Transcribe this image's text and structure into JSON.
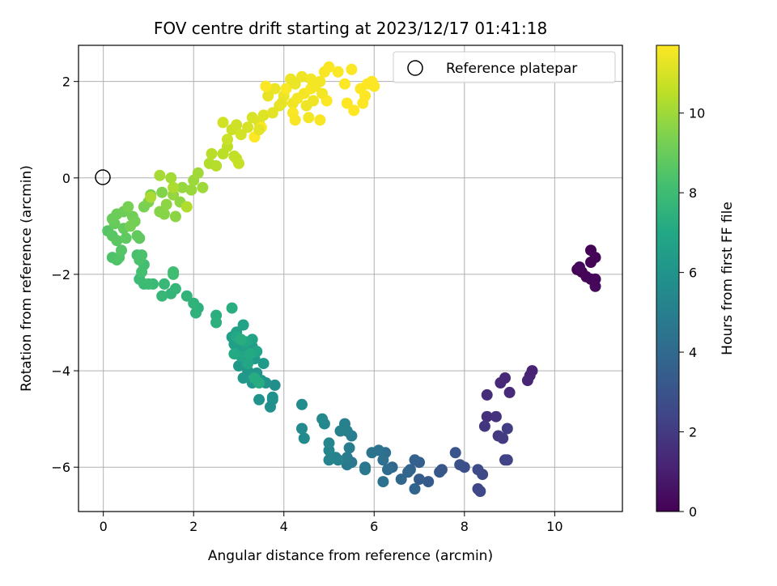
{
  "chart_data": {
    "type": "scatter",
    "title": "FOV centre drift starting at 2023/12/17 01:41:18",
    "xlabel": "Angular distance from reference (arcmin)",
    "ylabel": "Rotation from reference (arcmin)",
    "xlim": [
      -0.55,
      11.5
    ],
    "ylim": [
      -6.92,
      2.75
    ],
    "xticks": [
      0,
      2,
      4,
      6,
      8,
      10
    ],
    "yticks": [
      -6,
      -4,
      -2,
      0,
      2
    ],
    "grid": true,
    "legend": {
      "position": "top-right",
      "entries": [
        "Reference platepar"
      ]
    },
    "reference_point": {
      "x": 0,
      "y": 0
    },
    "colorbar": {
      "label": "Hours from first FF file",
      "min": 0,
      "max": 11.7,
      "ticks": [
        0,
        2,
        4,
        6,
        8,
        10
      ],
      "colormap": "viridis"
    },
    "points": [
      [
        10.5,
        -1.9,
        0.0
      ],
      [
        10.6,
        -1.95,
        0.05
      ],
      [
        10.8,
        -1.5,
        0.08
      ],
      [
        10.9,
        -1.65,
        0.1
      ],
      [
        10.8,
        -1.75,
        0.12
      ],
      [
        10.7,
        -2.05,
        0.15
      ],
      [
        10.8,
        -2.1,
        0.18
      ],
      [
        10.9,
        -2.1,
        0.2
      ],
      [
        10.9,
        -2.25,
        0.22
      ],
      [
        10.55,
        -1.85,
        0.24
      ],
      [
        9.5,
        -4.0,
        1.1
      ],
      [
        9.45,
        -4.1,
        1.15
      ],
      [
        9.4,
        -4.2,
        1.2
      ],
      [
        8.9,
        -4.15,
        1.3
      ],
      [
        8.8,
        -4.25,
        1.35
      ],
      [
        9.0,
        -4.45,
        1.4
      ],
      [
        8.5,
        -4.5,
        1.5
      ],
      [
        8.5,
        -4.95,
        1.6
      ],
      [
        8.7,
        -4.95,
        1.7
      ],
      [
        8.45,
        -5.15,
        1.8
      ],
      [
        8.75,
        -5.35,
        1.9
      ],
      [
        8.85,
        -5.4,
        2.0
      ],
      [
        8.95,
        -5.2,
        2.1
      ],
      [
        8.9,
        -5.85,
        2.2
      ],
      [
        8.95,
        -5.85,
        2.3
      ],
      [
        8.3,
        -6.45,
        2.4
      ],
      [
        8.35,
        -6.5,
        2.5
      ],
      [
        8.4,
        -6.15,
        2.6
      ],
      [
        8.3,
        -6.05,
        2.7
      ],
      [
        8.0,
        -6.0,
        2.8
      ],
      [
        7.9,
        -5.95,
        2.9
      ],
      [
        7.8,
        -5.7,
        3.0
      ],
      [
        7.5,
        -6.05,
        3.1
      ],
      [
        7.45,
        -6.1,
        3.2
      ],
      [
        7.2,
        -6.3,
        3.3
      ],
      [
        7.0,
        -6.25,
        3.4
      ],
      [
        7.0,
        -5.9,
        3.5
      ],
      [
        6.9,
        -5.85,
        3.6
      ],
      [
        6.8,
        -6.05,
        3.7
      ],
      [
        6.9,
        -6.45,
        3.8
      ],
      [
        6.75,
        -6.1,
        3.85
      ],
      [
        6.6,
        -6.25,
        3.9
      ],
      [
        6.4,
        -6.0,
        4.0
      ],
      [
        6.3,
        -6.05,
        4.1
      ],
      [
        6.25,
        -5.7,
        4.2
      ],
      [
        6.2,
        -5.85,
        4.3
      ],
      [
        6.2,
        -6.3,
        4.35
      ],
      [
        6.1,
        -5.65,
        4.4
      ],
      [
        5.95,
        -5.7,
        4.5
      ],
      [
        5.8,
        -6.0,
        4.6
      ],
      [
        5.8,
        -6.05,
        4.65
      ],
      [
        5.5,
        -5.9,
        4.7
      ],
      [
        5.4,
        -5.95,
        4.75
      ],
      [
        5.4,
        -5.8,
        4.8
      ],
      [
        5.45,
        -5.6,
        4.85
      ],
      [
        5.5,
        -5.35,
        4.9
      ],
      [
        5.4,
        -5.25,
        5.0
      ],
      [
        5.35,
        -5.1,
        5.05
      ],
      [
        5.25,
        -5.25,
        5.1
      ],
      [
        5.2,
        -5.85,
        5.15
      ],
      [
        5.15,
        -5.8,
        5.2
      ],
      [
        5.0,
        -5.85,
        5.25
      ],
      [
        5.0,
        -5.65,
        5.3
      ],
      [
        5.0,
        -5.5,
        5.35
      ],
      [
        4.9,
        -5.1,
        5.4
      ],
      [
        4.85,
        -5.0,
        5.45
      ],
      [
        4.4,
        -5.2,
        5.5
      ],
      [
        4.45,
        -5.4,
        5.55
      ],
      [
        4.4,
        -4.7,
        5.6
      ],
      [
        3.8,
        -4.3,
        5.7
      ],
      [
        3.75,
        -4.6,
        5.75
      ],
      [
        3.7,
        -4.75,
        5.8
      ],
      [
        3.75,
        -4.55,
        5.85
      ],
      [
        3.45,
        -4.6,
        5.9
      ],
      [
        3.6,
        -4.25,
        5.95
      ],
      [
        3.5,
        -4.2,
        6.0
      ],
      [
        3.4,
        -4.05,
        6.05
      ],
      [
        3.3,
        -4.25,
        6.1
      ],
      [
        3.2,
        -4.0,
        6.15
      ],
      [
        3.1,
        -4.15,
        6.2
      ],
      [
        3.0,
        -3.9,
        6.25
      ],
      [
        3.35,
        -3.75,
        6.3
      ],
      [
        3.55,
        -3.85,
        6.35
      ],
      [
        3.3,
        -3.5,
        6.4
      ],
      [
        3.15,
        -3.6,
        6.45
      ],
      [
        3.0,
        -3.55,
        6.5
      ],
      [
        2.9,
        -3.45,
        6.55
      ],
      [
        2.85,
        -3.3,
        6.6
      ],
      [
        2.95,
        -3.2,
        6.65
      ],
      [
        3.1,
        -3.05,
        6.7
      ],
      [
        3.3,
        -3.35,
        6.75
      ],
      [
        3.4,
        -3.6,
        6.8
      ],
      [
        3.05,
        -3.7,
        6.85
      ],
      [
        3.2,
        -3.85,
        6.9
      ],
      [
        3.15,
        -3.4,
        6.95
      ],
      [
        2.95,
        -3.3,
        7.0
      ],
      [
        2.9,
        -3.65,
        7.05
      ],
      [
        3.25,
        -3.65,
        7.1
      ],
      [
        3.35,
        -4.15,
        7.15
      ],
      [
        3.45,
        -4.25,
        7.2
      ],
      [
        3.05,
        -3.35,
        7.25
      ],
      [
        2.85,
        -2.7,
        7.3
      ],
      [
        2.5,
        -2.85,
        7.35
      ],
      [
        2.5,
        -3.0,
        7.4
      ],
      [
        2.1,
        -2.7,
        7.45
      ],
      [
        2.05,
        -2.8,
        7.5
      ],
      [
        2.0,
        -2.6,
        7.55
      ],
      [
        1.85,
        -2.45,
        7.6
      ],
      [
        1.5,
        -2.4,
        7.65
      ],
      [
        1.6,
        -2.3,
        7.7
      ],
      [
        1.3,
        -2.45,
        7.75
      ],
      [
        1.35,
        -2.2,
        7.8
      ],
      [
        1.1,
        -2.2,
        7.85
      ],
      [
        0.9,
        -2.2,
        7.9
      ],
      [
        0.8,
        -2.1,
        7.95
      ],
      [
        1.0,
        -2.2,
        8.0
      ],
      [
        1.55,
        -2.0,
        8.05
      ],
      [
        1.55,
        -1.95,
        8.1
      ],
      [
        0.9,
        -1.8,
        8.15
      ],
      [
        0.85,
        -1.95,
        8.2
      ],
      [
        0.75,
        -1.6,
        8.25
      ],
      [
        0.8,
        -1.7,
        8.3
      ],
      [
        0.85,
        -1.6,
        8.35
      ],
      [
        0.2,
        -1.65,
        8.4
      ],
      [
        0.3,
        -1.7,
        8.45
      ],
      [
        0.35,
        -1.65,
        8.5
      ],
      [
        0.4,
        -1.5,
        8.55
      ],
      [
        0.1,
        -1.1,
        8.6
      ],
      [
        0.2,
        -1.2,
        8.65
      ],
      [
        0.3,
        -1.3,
        8.7
      ],
      [
        0.5,
        -1.25,
        8.75
      ],
      [
        0.8,
        -1.25,
        8.8
      ],
      [
        0.75,
        -1.2,
        8.85
      ],
      [
        0.45,
        -1.05,
        8.9
      ],
      [
        0.25,
        -0.95,
        8.95
      ],
      [
        0.2,
        -0.85,
        9.0
      ],
      [
        0.3,
        -0.75,
        9.05
      ],
      [
        0.45,
        -0.7,
        9.1
      ],
      [
        0.65,
        -0.8,
        9.15
      ],
      [
        0.7,
        -0.9,
        9.2
      ],
      [
        0.6,
        -1.0,
        9.25
      ],
      [
        0.55,
        -0.6,
        9.3
      ],
      [
        0.9,
        -0.6,
        9.35
      ],
      [
        1.0,
        -0.5,
        9.4
      ],
      [
        1.05,
        -0.35,
        9.45
      ],
      [
        1.3,
        -0.3,
        9.5
      ],
      [
        1.25,
        -0.7,
        9.55
      ],
      [
        1.35,
        -0.75,
        9.6
      ],
      [
        1.6,
        -0.8,
        9.65
      ],
      [
        1.4,
        -0.55,
        9.7
      ],
      [
        1.7,
        -0.5,
        9.75
      ],
      [
        1.55,
        -0.35,
        9.8
      ],
      [
        1.75,
        -0.2,
        9.85
      ],
      [
        1.95,
        -0.25,
        9.9
      ],
      [
        2.0,
        -0.05,
        9.95
      ],
      [
        2.2,
        -0.2,
        10.0
      ],
      [
        2.1,
        0.1,
        10.05
      ],
      [
        1.5,
        0.0,
        10.1
      ],
      [
        1.25,
        0.05,
        10.15
      ],
      [
        1.05,
        -0.4,
        10.2
      ],
      [
        1.55,
        -0.2,
        10.25
      ],
      [
        1.85,
        -0.6,
        10.3
      ],
      [
        2.35,
        0.3,
        10.35
      ],
      [
        2.5,
        0.25,
        10.4
      ],
      [
        2.4,
        0.5,
        10.45
      ],
      [
        2.65,
        0.5,
        10.5
      ],
      [
        2.75,
        0.65,
        10.55
      ],
      [
        2.9,
        0.45,
        10.6
      ],
      [
        2.95,
        0.4,
        10.65
      ],
      [
        3.0,
        0.3,
        10.7
      ],
      [
        2.75,
        0.8,
        10.75
      ],
      [
        2.85,
        1.0,
        10.8
      ],
      [
        2.95,
        1.1,
        10.85
      ],
      [
        2.65,
        1.15,
        10.9
      ],
      [
        3.05,
        0.9,
        10.95
      ],
      [
        3.2,
        1.05,
        11.0
      ],
      [
        3.3,
        1.25,
        11.05
      ],
      [
        3.45,
        1.15,
        11.1
      ],
      [
        3.55,
        1.3,
        11.15
      ],
      [
        3.75,
        1.35,
        11.2
      ],
      [
        3.9,
        1.5,
        11.25
      ],
      [
        3.65,
        1.7,
        11.3
      ],
      [
        3.8,
        1.85,
        11.35
      ],
      [
        4.0,
        1.7,
        11.4
      ],
      [
        4.2,
        1.55,
        11.45
      ],
      [
        4.3,
        1.65,
        11.5
      ],
      [
        4.45,
        1.75,
        11.55
      ],
      [
        4.6,
        1.85,
        11.6
      ],
      [
        4.2,
        1.35,
        11.62
      ],
      [
        4.05,
        1.85,
        11.64
      ],
      [
        3.5,
        1.05,
        11.66
      ],
      [
        3.35,
        0.85,
        11.68
      ],
      [
        3.6,
        1.9,
        11.7
      ],
      [
        4.15,
        2.05,
        11.4
      ],
      [
        4.4,
        2.1,
        11.45
      ],
      [
        4.6,
        2.05,
        11.5
      ],
      [
        4.8,
        2.0,
        11.55
      ],
      [
        4.9,
        2.2,
        11.6
      ],
      [
        5.0,
        2.3,
        11.62
      ],
      [
        5.2,
        2.2,
        11.64
      ],
      [
        5.5,
        2.25,
        11.66
      ],
      [
        5.35,
        1.95,
        11.68
      ],
      [
        5.7,
        1.85,
        11.69
      ],
      [
        5.95,
        2.0,
        11.7
      ],
      [
        5.85,
        1.95,
        11.7
      ],
      [
        6.0,
        1.9,
        11.7
      ],
      [
        5.75,
        1.55,
        11.7
      ],
      [
        5.55,
        1.4,
        11.7
      ],
      [
        5.4,
        1.55,
        11.7
      ],
      [
        4.95,
        1.6,
        11.7
      ],
      [
        4.8,
        1.2,
        11.6
      ],
      [
        4.85,
        1.75,
        11.55
      ],
      [
        4.55,
        1.25,
        11.5
      ],
      [
        4.65,
        1.6,
        11.45
      ],
      [
        4.5,
        1.5,
        11.4
      ],
      [
        4.25,
        1.95,
        11.35
      ],
      [
        3.95,
        1.55,
        11.3
      ],
      [
        3.45,
        1.0,
        11.2
      ],
      [
        5.8,
        1.7,
        11.7
      ],
      [
        4.25,
        1.2,
        11.6
      ],
      [
        4.7,
        1.9,
        11.5
      ]
    ]
  }
}
